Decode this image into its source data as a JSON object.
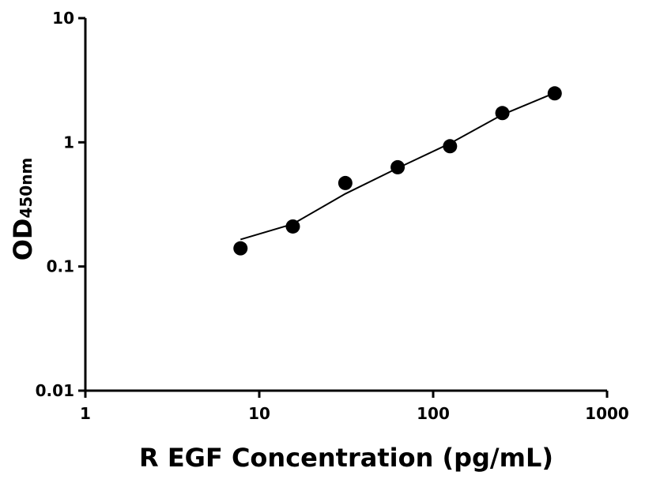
{
  "chart_data": {
    "type": "scatter",
    "xlabel": "R EGF Concentration (pg/mL)",
    "ylabel": "OD",
    "ylabel_sub": "450nm",
    "xscale": "log",
    "yscale": "log",
    "xlim": [
      1,
      1000
    ],
    "ylim": [
      0.01,
      10
    ],
    "xticks": [
      1,
      10,
      100,
      1000
    ],
    "yticks": [
      0.01,
      0.1,
      1,
      10
    ],
    "series": [
      {
        "style": "markers",
        "color": "#000000",
        "x": [
          7.8,
          15.6,
          31.25,
          62.5,
          125,
          250,
          500
        ],
        "values": [
          0.14,
          0.21,
          0.47,
          0.63,
          0.93,
          1.72,
          2.48
        ]
      },
      {
        "style": "line",
        "color": "#000000",
        "x": [
          7.8,
          15.6,
          31.25,
          62.5,
          125,
          250,
          500
        ],
        "values": [
          0.165,
          0.22,
          0.385,
          0.62,
          0.98,
          1.67,
          2.5
        ]
      }
    ]
  }
}
